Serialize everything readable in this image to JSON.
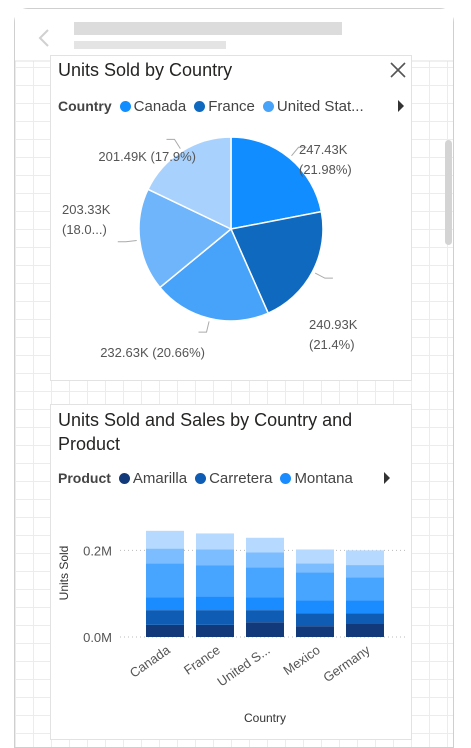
{
  "chart_data": [
    {
      "type": "pie",
      "title": "Units Sold by Country",
      "legend_title": "Country",
      "categories": [
        "Canada",
        "France",
        "United Stat...",
        null,
        null
      ],
      "values": [
        247430,
        240930,
        232630,
        203330,
        201490
      ],
      "value_labels": [
        "247.43K (21.98%)",
        "240.93K (21.4%)",
        "232.63K (20.66%)",
        "203.33K (18.0...)",
        "201.49K (17.9%)"
      ],
      "colors": [
        "#118dff",
        "#0f6abf",
        "#47a3fa",
        "#6fb5fb",
        "#a8d2fd"
      ]
    },
    {
      "type": "stacked_bar",
      "title": "Units Sold and Sales by Country and Product",
      "legend_title": "Product",
      "x_label": "Country",
      "y_label": "Units Sold",
      "categories": [
        "Canada",
        "France",
        "United S...",
        "Mexico",
        "Germany"
      ],
      "series": [
        {
          "name": "Amarilla",
          "color": "#12397a",
          "values": [
            28000,
            28000,
            34000,
            25000,
            30000
          ]
        },
        {
          "name": "Carretera",
          "color": "#0f5cb5",
          "values": [
            34000,
            34000,
            28000,
            30000,
            25000
          ]
        },
        {
          "name": "Montana",
          "color": "#1a8cff",
          "values": [
            30000,
            32000,
            30000,
            30000,
            30000
          ]
        },
        {
          "name": null,
          "color": "#47a4ff",
          "values": [
            78000,
            71000,
            69000,
            64000,
            53000
          ]
        },
        {
          "name": null,
          "color": "#7cbdff",
          "values": [
            34000,
            37000,
            34000,
            21000,
            28000
          ]
        },
        {
          "name": null,
          "color": "#b6d9ff",
          "values": [
            41000,
            37000,
            34000,
            32000,
            34000
          ]
        }
      ],
      "ylim": [
        0,
        270000
      ],
      "yticks": [
        {
          "value": 0,
          "label": "0.0M"
        },
        {
          "value": 200000,
          "label": "0.2M"
        }
      ],
      "grid": true
    }
  ]
}
